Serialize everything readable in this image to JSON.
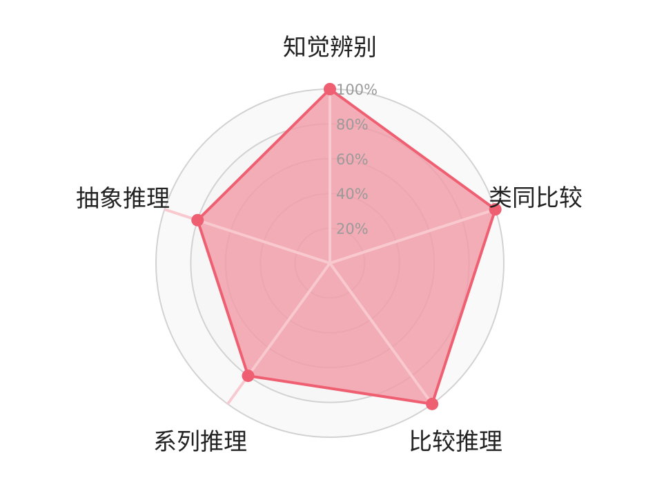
{
  "chart_data": {
    "type": "radar",
    "title": "",
    "axes": [
      "知觉辨别",
      "类同比较",
      "比较推理",
      "系列推理",
      "抽象推理"
    ],
    "series": [
      {
        "values": [
          100,
          100,
          100,
          80,
          80
        ]
      }
    ],
    "range": [
      0,
      100
    ],
    "ticks": [
      20,
      40,
      60,
      80,
      100
    ],
    "tick_labels": [
      "20%",
      "40%",
      "60%",
      "80%",
      "100%"
    ],
    "grid": "concentric-circles",
    "legend": "none",
    "colors": {
      "area_fill": "#f29ca8",
      "outline": "#ef5f72",
      "point": "#ef5f72",
      "spoke": "#f8c9cf",
      "grid_ring": "#d2d2d2",
      "ring_fill": "#f4f4f4"
    }
  }
}
